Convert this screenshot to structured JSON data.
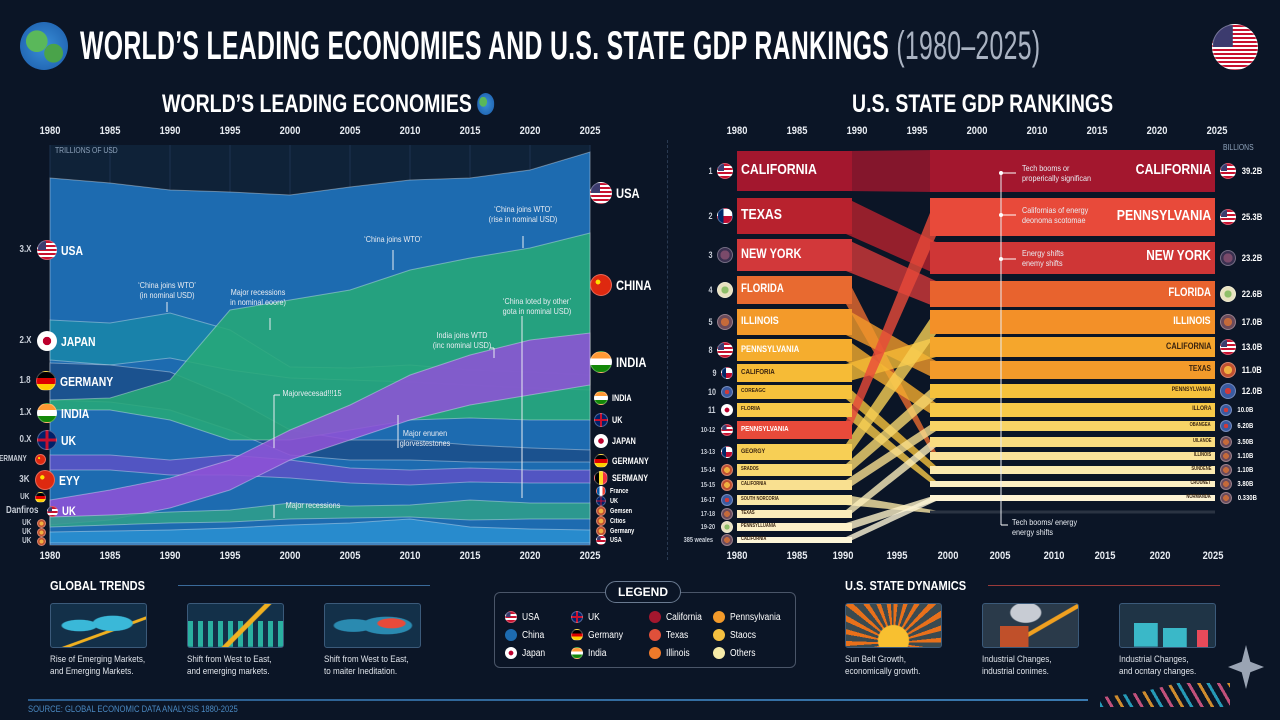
{
  "header": {
    "title": "WORLD’S LEADING ECONOMIES AND U.S. STATE GDP RANKINGS",
    "years": "(1980–2025)",
    "left_icon": "globe-icon",
    "right_icon": "us-flag-icon"
  },
  "chart_data": [
    {
      "type": "area",
      "title": "WORLD’S LEADING ECONOMIES",
      "ylabel": "TRILLIONS OF USD",
      "x": [
        1980,
        1985,
        1990,
        1995,
        2000,
        2005,
        2010,
        2015,
        2020,
        2025
      ],
      "x_ticks": [
        "1980",
        "1985",
        "1990",
        "1995",
        "2000",
        "2005",
        "2010",
        "2015",
        "2020",
        "2025"
      ],
      "grid": true,
      "series": [
        {
          "name": "USA",
          "color": "#1d6bb0",
          "upper": [
            36.7,
            36.2,
            35.5,
            35.3,
            35.0,
            35.8,
            36.5,
            36.7,
            37.5,
            39.3
          ],
          "lower": [
            0,
            0,
            0,
            0,
            0,
            0,
            0,
            0,
            0,
            0
          ]
        },
        {
          "name": "JAPAN",
          "color": "#1985a8",
          "upper": [
            22.5,
            22.2,
            23.2,
            21.5,
            17.8,
            17.7,
            18.0,
            17.5,
            17.3,
            17.0
          ],
          "lower": [
            18.5,
            18.0,
            18.7,
            17.5,
            16.7,
            16.5,
            16.3,
            16.0,
            15.7,
            15.5
          ]
        },
        {
          "name": "GERMANY",
          "color": "#1b4f8a",
          "upper": [
            18.2,
            18.0,
            17.3,
            14.8,
            11.5,
            10.5,
            10.5,
            10.0,
            9.7,
            9.5
          ],
          "lower": [
            14.5,
            14.3,
            13.5,
            11.5,
            9.0,
            8.5,
            8.5,
            8.3,
            8.3,
            8.3
          ]
        },
        {
          "name": "CHINA",
          "color": "#27a878",
          "upper": [
            14.5,
            14.7,
            16.5,
            23.5,
            24.5,
            25.5,
            27.5,
            28.7,
            29.7,
            31.2
          ],
          "lower": [
            13.5,
            13.5,
            12.5,
            10.5,
            10.5,
            11.5,
            12.5,
            12.7,
            12.5,
            12.5
          ]
        },
        {
          "name": "UK",
          "color": "#5a52c4",
          "upper": [
            9.0,
            9.0,
            8.5,
            9.0,
            8.5,
            7.7,
            7.5,
            7.7,
            7.5,
            7.5
          ],
          "lower": [
            7.5,
            7.5,
            7.0,
            7.0,
            6.7,
            6.2,
            6.0,
            6.3,
            6.2,
            6.2
          ]
        },
        {
          "name": "INDIA",
          "color": "#8e52d6",
          "upper": [
            4.5,
            5.5,
            6.7,
            8.5,
            11.5,
            14.0,
            17.0,
            19.0,
            20.5,
            21.2
          ],
          "lower": [
            2.0,
            2.5,
            3.7,
            5.5,
            8.5,
            10.5,
            12.5,
            14.0,
            15.0,
            16.0
          ]
        },
        {
          "name": "",
          "color": "#2f9e8a",
          "upper": [
            2.8,
            3.0,
            3.3,
            3.5,
            4.2,
            3.9,
            4.0,
            4.5,
            4.2,
            4.2
          ],
          "lower": [
            1.8,
            2.0,
            2.2,
            2.3,
            2.6,
            2.7,
            2.8,
            2.5,
            2.6,
            2.6
          ]
        },
        {
          "name": "",
          "color": "#2a8fd0",
          "upper": [
            1.3,
            1.4,
            1.5,
            1.7,
            2.0,
            2.2,
            2.6,
            1.8,
            1.6,
            1.5
          ],
          "lower": [
            0.2,
            0.2,
            0.2,
            0.2,
            0.2,
            0.2,
            0.2,
            0.2,
            0.2,
            0.2
          ]
        }
      ],
      "ylim": [
        0,
        40
      ],
      "left_labels": [
        {
          "value": "3.X",
          "name": "USA",
          "flag": "usa",
          "big": true
        },
        {
          "value": "2.X",
          "name": "JAPAN",
          "flag": "japan",
          "big": true
        },
        {
          "value": "1.8",
          "name": "GERMANY",
          "flag": "germany",
          "big": true
        },
        {
          "value": "1.X",
          "name": "INDIA",
          "flag": "india",
          "big": true
        },
        {
          "value": "0.X",
          "name": "UK",
          "flag": "uk",
          "big": true
        },
        {
          "value": "GERMANY",
          "name": "",
          "flag": "china",
          "big": false
        },
        {
          "value": "3K",
          "name": "EYY",
          "flag": "china",
          "big": true
        },
        {
          "value": "UK",
          "name": "",
          "flag": "germany",
          "big": false
        },
        {
          "value": "Danfiros",
          "name": "UK",
          "flag": "usa",
          "big": true
        },
        {
          "value": "UK",
          "name": "",
          "flag": "orange",
          "big": false
        },
        {
          "value": "UK",
          "name": "",
          "flag": "orange",
          "big": false
        },
        {
          "value": "UK",
          "name": "",
          "flag": "orange",
          "big": false
        }
      ],
      "right_labels": [
        {
          "name": "USA",
          "flag": "usa",
          "big": true
        },
        {
          "name": "CHINA",
          "flag": "china",
          "big": true
        },
        {
          "name": "INDIA",
          "flag": "india",
          "big": true
        },
        {
          "name": "INDIA",
          "flag": "india",
          "big": false
        },
        {
          "name": "UK",
          "flag": "uk",
          "big": false
        },
        {
          "name": "JAPAN",
          "flag": "japan",
          "big": false
        },
        {
          "name": "GERMANY",
          "flag": "germany",
          "big": false
        },
        {
          "name": "SERMANY",
          "flag": "belgium",
          "big": false
        },
        {
          "name": "France",
          "flag": "france",
          "big": false
        },
        {
          "name": "UK",
          "flag": "uk",
          "big": false
        },
        {
          "name": "Gemsen",
          "flag": "orange",
          "big": false
        },
        {
          "name": "Citios",
          "flag": "orange",
          "big": false
        },
        {
          "name": "Germany",
          "flag": "orange",
          "big": false
        },
        {
          "name": "USA",
          "flag": "usa",
          "big": false
        }
      ],
      "annotations": [
        {
          "text": "‘China joins WTO’\n(in nominal USD)"
        },
        {
          "text": "Major recessions\nin nominal eoore)"
        },
        {
          "text": "‘China joins WTO’"
        },
        {
          "text": "‘China joins WTO’\n(rise in nominal USD)"
        },
        {
          "text": "‘China loted by other’\ngota in nominal USD)"
        },
        {
          "text": "India joins WTD\n(inc nominal USD)"
        },
        {
          "text": "Majorvecesad!!!15"
        },
        {
          "text": "Major enunen\nglorvestestones"
        },
        {
          "text": "Major recessions"
        }
      ]
    },
    {
      "type": "bump",
      "title": "U.S. STATE GDP RANKINGS",
      "ylabel": "BILLIONS",
      "x_ticks_top": [
        "1980",
        "1985",
        "1990",
        "1995",
        "2000",
        "2010",
        "2015",
        "2020",
        "2025"
      ],
      "x_ticks_bottom": [
        "1980",
        "1985",
        "1990",
        "1995",
        "2000",
        "2005",
        "2010",
        "2015",
        "2020",
        "2025"
      ],
      "ranks_1980": [
        {
          "rank": "1",
          "state": "CALIFORNIA",
          "flag": "usa",
          "color": "#a3172e",
          "to": 0
        },
        {
          "rank": "2",
          "state": "TEXAS",
          "flag": "texas",
          "color": "#b8222e",
          "to": 2
        },
        {
          "rank": "3",
          "state": "NEW YORK",
          "flag": "ny",
          "color": "#d2383a",
          "to": 3
        },
        {
          "rank": "4",
          "state": "FLORIDA",
          "flag": "florida",
          "color": "#e86a30",
          "to": 11
        },
        {
          "rank": "5",
          "state": "ILLINOIS",
          "flag": "state",
          "color": "#f39a2a",
          "to": 6
        },
        {
          "rank": "8",
          "state": "PENNSYLVANIA",
          "flag": "usa",
          "color": "#f5ad2e",
          "to": 8
        },
        {
          "rank": "9",
          "state": "CALIFORIA",
          "flag": "texas",
          "color": "#f6bb36",
          "to": 5
        },
        {
          "rank": "10",
          "state": "COREAGC",
          "flag": "co",
          "color": "#f6c23c",
          "to": 12
        },
        {
          "rank": "11",
          "state": "FLORIIA",
          "flag": "japan",
          "color": "#f7c948",
          "to": 13
        },
        {
          "rank": "10-12",
          "state": "PENNSYLVANIA",
          "flag": "usa",
          "color": "#e84a3a",
          "to": 1
        },
        {
          "rank": "13-13",
          "state": "GEORGY",
          "flag": "texas",
          "color": "#f7cf55",
          "to": 4
        },
        {
          "rank": "15-14",
          "state": "SRADOS",
          "flag": "orange",
          "color": "#f8d870",
          "to": 7
        },
        {
          "rank": "15-15",
          "state": "CALIFORNIA",
          "flag": "orange",
          "color": "#f9e090",
          "to": 9
        },
        {
          "rank": "16-17",
          "state": "SOUTH NORCORIA",
          "flag": "co",
          "color": "#fae7a6",
          "to": 15
        },
        {
          "rank": "17-18",
          "state": "TEXAS",
          "flag": "state",
          "color": "#fbedbb",
          "to": 10
        },
        {
          "rank": "19-20",
          "state": "PENNSYLLUANIA",
          "flag": "florida",
          "color": "#fcf1c8",
          "to": 14
        },
        {
          "rank": "385 weales",
          "state": "CALIFORNIA",
          "flag": "state",
          "color": "#fdf5d8",
          "to": 14
        }
      ],
      "ranks_2025": [
        {
          "state": "CALIFORNIA",
          "value": "39.2B",
          "flag": "usa",
          "color": "#a3172e"
        },
        {
          "state": "PENNSYLVANIA",
          "value": "25.3B",
          "flag": "usa",
          "color": "#e84a3a"
        },
        {
          "state": "NEW YORK",
          "value": "23.2B",
          "flag": "ny",
          "color": "#cf3636"
        },
        {
          "state": "FLORIDA",
          "value": "22.6B",
          "flag": "florida",
          "color": "#e8632e"
        },
        {
          "state": "ILLINOIS",
          "value": "17.0B",
          "flag": "state",
          "color": "#f39028"
        },
        {
          "state": "CALIFORNIA",
          "value": "13.0B",
          "flag": "usa",
          "color": "#f5a62c"
        },
        {
          "state": "TEXAS",
          "value": "11.0B",
          "flag": "orange",
          "color": "#f39a2a"
        },
        {
          "state": "PENNSYLVANIA",
          "value": "12.0B",
          "flag": "co",
          "color": "#f6c23c"
        },
        {
          "state": "ILLORA",
          "value": "10.0B",
          "flag": "co",
          "color": "#f7c948"
        },
        {
          "state": "OBANGEA",
          "value": "6.20B",
          "flag": "co",
          "color": "#f8d466"
        },
        {
          "state": "UILANOE",
          "value": "3.50B",
          "flag": "state",
          "color": "#f9dc80"
        },
        {
          "state": "ILLINOIS",
          "value": "1.10B",
          "flag": "state",
          "color": "#fae39a"
        },
        {
          "state": "SUNDENE",
          "value": "1.10B",
          "flag": "state",
          "color": "#fbeab0"
        },
        {
          "state": "CROUNET",
          "value": "3.80B",
          "flag": "state",
          "color": "#fcefc4"
        },
        {
          "state": "NORMANDA",
          "value": "0.330B",
          "flag": "state",
          "color": "#fdf3d4"
        },
        {
          "state": "",
          "value": "",
          "flag": "",
          "color": "#2a3342"
        }
      ],
      "annotations": [
        {
          "text": "Tech booms or\nproperically significan"
        },
        {
          "text": "Californias of energy\ndeonoma scotomae"
        },
        {
          "text": "Energy shifts\nenemy shifts"
        },
        {
          "text": "Tech booms/ energy\nenergy shifts"
        }
      ]
    }
  ],
  "bottom": {
    "global_trends": {
      "title": "GLOBAL TRENDS",
      "cards": [
        {
          "caption": "Rise of Emerging Markets,\nand Emerging Markets.",
          "icon": "world-map-trend-icon"
        },
        {
          "caption": "Shift from West to East,\nand emerging markets.",
          "icon": "bar-chart-growth-icon"
        },
        {
          "caption": "Shift from West to East,\nto maiter Ineditation.",
          "icon": "world-map-asia-icon"
        }
      ]
    },
    "legend": {
      "title": "LEGEND",
      "items": [
        {
          "label": "USA",
          "flag": "usa"
        },
        {
          "label": "UK",
          "flag": "uk"
        },
        {
          "label": "California",
          "color": "#a3172e"
        },
        {
          "label": "Pennsylvania",
          "color": "#f39a2a"
        },
        {
          "label": "China",
          "color": "#1d6bb0"
        },
        {
          "label": "Germany",
          "flag": "germany"
        },
        {
          "label": "Texas",
          "color": "#e0503a"
        },
        {
          "label": "Staocs",
          "color": "#f5c040"
        },
        {
          "label": "Japan",
          "flag": "japan"
        },
        {
          "label": "India",
          "flag": "india"
        },
        {
          "label": "Illinois",
          "color": "#ef7a2a"
        },
        {
          "label": "Others",
          "color": "#f6eba8"
        }
      ]
    },
    "state_dynamics": {
      "title": "U.S. STATE DYNAMICS",
      "cards": [
        {
          "caption": "Sun Belt Growth,\neconomically growth.",
          "icon": "sunrise-icon"
        },
        {
          "caption": "Industrial Changes,\nindustrial conimes.",
          "icon": "factory-smoke-icon"
        },
        {
          "caption": "Industrial Changes,\nand ocntary changes.",
          "icon": "factory-icon"
        }
      ]
    },
    "source": "SOURCE: GLOBAL ECONOMIC DATA ANALYSIS 1880-2025"
  }
}
